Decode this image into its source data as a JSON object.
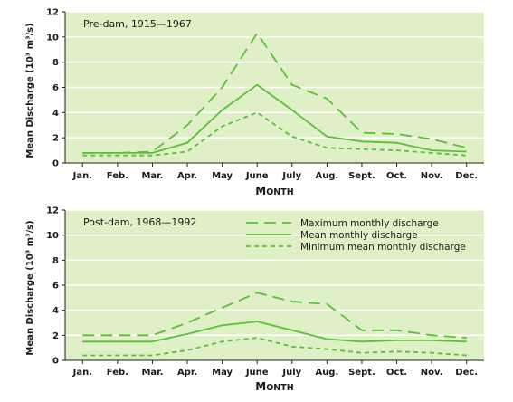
{
  "chart_data": [
    {
      "type": "line",
      "title": "Pre-dam, 1915—1967",
      "xlabel": "Month",
      "ylabel": "Mean Discharge (10³ m³/s)",
      "categories": [
        "Jan.",
        "Feb.",
        "Mar.",
        "Apr.",
        "May",
        "June",
        "July",
        "Aug.",
        "Sept.",
        "Oct.",
        "Nov.",
        "Dec."
      ],
      "ylim": [
        0,
        12
      ],
      "yticks": [
        0,
        2,
        4,
        6,
        8,
        10,
        12
      ],
      "grid": true,
      "series": [
        {
          "name": "Maximum monthly discharge",
          "style": "long-dash",
          "values": [
            0.8,
            0.8,
            0.9,
            3.0,
            6.0,
            10.3,
            6.2,
            5.1,
            2.4,
            2.3,
            1.9,
            1.2
          ]
        },
        {
          "name": "Mean monthly discharge",
          "style": "solid",
          "values": [
            0.8,
            0.8,
            0.8,
            1.6,
            4.2,
            6.2,
            4.2,
            2.1,
            1.7,
            1.6,
            1.0,
            0.9
          ]
        },
        {
          "name": "Minimum mean monthly discharge",
          "style": "short-dash",
          "values": [
            0.6,
            0.6,
            0.6,
            0.9,
            2.9,
            4.0,
            2.1,
            1.2,
            1.1,
            1.0,
            0.8,
            0.6
          ]
        }
      ]
    },
    {
      "type": "line",
      "title": "Post-dam, 1968—1992",
      "xlabel": "Month",
      "ylabel": "Mean Discharge (10³ m³/s)",
      "categories": [
        "Jan.",
        "Feb.",
        "Mar.",
        "Apr.",
        "May",
        "June",
        "July",
        "Aug.",
        "Sept.",
        "Oct.",
        "Nov.",
        "Dec."
      ],
      "ylim": [
        0,
        12
      ],
      "yticks": [
        0,
        2,
        4,
        6,
        8,
        10,
        12
      ],
      "grid": true,
      "legend": "top-right",
      "series": [
        {
          "name": "Maximum monthly discharge",
          "style": "long-dash",
          "values": [
            2.0,
            2.0,
            2.0,
            3.0,
            4.2,
            5.4,
            4.7,
            4.5,
            2.4,
            2.4,
            2.0,
            1.8
          ]
        },
        {
          "name": "Mean monthly discharge",
          "style": "solid",
          "values": [
            1.5,
            1.5,
            1.5,
            2.1,
            2.8,
            3.1,
            2.4,
            1.7,
            1.5,
            1.6,
            1.6,
            1.5
          ]
        },
        {
          "name": "Minimum mean monthly discharge",
          "style": "short-dash",
          "values": [
            0.4,
            0.4,
            0.4,
            0.8,
            1.5,
            1.8,
            1.1,
            0.9,
            0.6,
            0.7,
            0.6,
            0.4
          ]
        }
      ]
    }
  ],
  "colors": {
    "plot_bg": "#dfefc6",
    "grid": "#ffffff",
    "line": "#5cbf3a",
    "axis": "#222222"
  }
}
